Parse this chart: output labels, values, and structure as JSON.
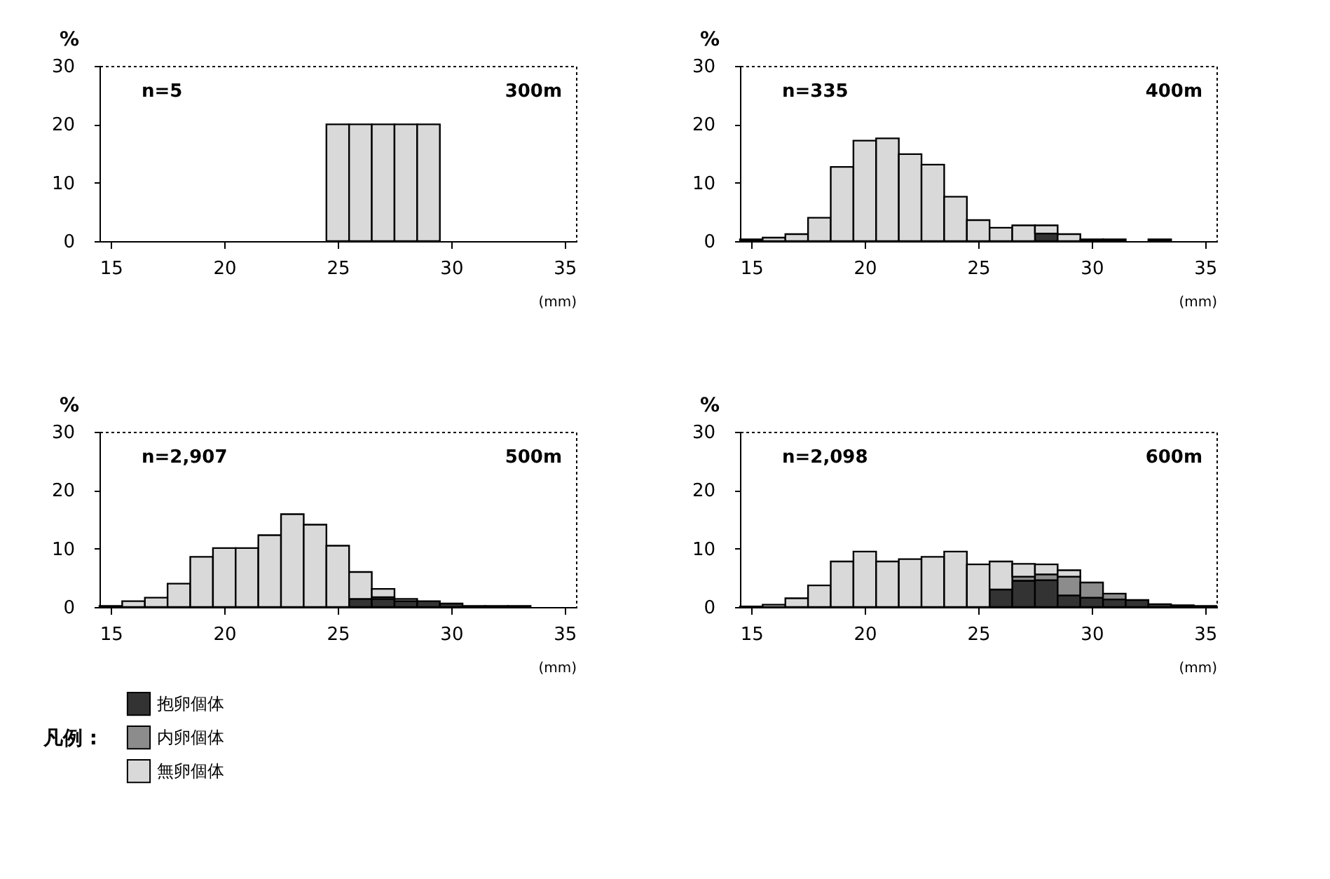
{
  "chart_data": [
    {
      "type": "bar",
      "ylabel": "%",
      "xlabel": "(mm)",
      "annotations": [
        "n=5",
        "300m"
      ],
      "x": [
        25,
        26,
        27,
        28,
        29
      ],
      "stacked": true,
      "xlim": [
        14.5,
        35.5
      ],
      "xticks": [
        15,
        20,
        25,
        30,
        35
      ],
      "ylim": [
        0,
        30
      ],
      "yticks": [
        0,
        10,
        20,
        30
      ],
      "series": [
        {
          "color": "#d9d9d9",
          "values": [
            20,
            20,
            20,
            20,
            20
          ]
        }
      ]
    },
    {
      "type": "bar",
      "ylabel": "%",
      "xlabel": "(mm)",
      "annotations": [
        "n=335",
        "400m"
      ],
      "x": [
        15,
        16,
        17,
        18,
        19,
        20,
        21,
        22,
        23,
        24,
        25,
        26,
        27,
        28,
        29,
        30,
        31,
        32,
        33
      ],
      "stacked": true,
      "xlim": [
        14.5,
        35.5
      ],
      "xticks": [
        15,
        20,
        25,
        30,
        35
      ],
      "ylim": [
        0,
        30
      ],
      "yticks": [
        0,
        10,
        20,
        30
      ],
      "series": [
        {
          "color": "#333333",
          "values": [
            null,
            null,
            null,
            null,
            null,
            null,
            null,
            null,
            null,
            null,
            null,
            null,
            null,
            1.3,
            null,
            null,
            null,
            null,
            null
          ]
        },
        {
          "color": "#d9d9d9",
          "values": [
            0.3,
            0.6,
            1.2,
            4.0,
            12.7,
            17.2,
            17.6,
            14.9,
            13.1,
            7.6,
            3.6,
            2.3,
            2.7,
            1.4,
            1.2,
            0.3,
            0.3,
            null,
            0.3
          ]
        }
      ]
    },
    {
      "type": "bar",
      "ylabel": "%",
      "xlabel": "(mm)",
      "annotations": [
        "n=2,907",
        "500m"
      ],
      "legend": "bottom left",
      "legend_title": "凡例 :",
      "x": [
        15,
        16,
        17,
        18,
        19,
        20,
        21,
        22,
        23,
        24,
        25,
        26,
        27,
        28,
        29,
        30,
        31,
        32,
        33
      ],
      "stacked": true,
      "xlim": [
        14.5,
        35.5
      ],
      "xticks": [
        15,
        20,
        25,
        30,
        35
      ],
      "ylim": [
        0,
        30
      ],
      "yticks": [
        0,
        10,
        20,
        30
      ],
      "series": [
        {
          "name": "抱卵個体",
          "color": "#333333",
          "values": [
            null,
            null,
            null,
            null,
            null,
            null,
            null,
            null,
            null,
            null,
            null,
            1.4,
            1.4,
            1.0,
            1.0,
            0.6,
            0.2,
            0.2,
            0.2
          ]
        },
        {
          "name": "内卵個体",
          "color": "#8c8c8c",
          "values": [
            null,
            null,
            null,
            null,
            null,
            null,
            null,
            null,
            null,
            null,
            null,
            null,
            0.3,
            0.4,
            null,
            null,
            null,
            null,
            null
          ]
        },
        {
          "name": "無卵個体",
          "color": "#d9d9d9",
          "values": [
            0.2,
            1.0,
            1.6,
            4.0,
            8.6,
            10.1,
            10.1,
            12.3,
            15.9,
            14.1,
            10.5,
            4.6,
            1.4,
            null,
            null,
            null,
            null,
            null,
            null
          ]
        }
      ]
    },
    {
      "type": "bar",
      "ylabel": "%",
      "xlabel": "(mm)",
      "annotations": [
        "n=2,098",
        "600m"
      ],
      "x": [
        15,
        16,
        17,
        18,
        19,
        20,
        21,
        22,
        23,
        24,
        25,
        26,
        27,
        28,
        29,
        30,
        31,
        32,
        33,
        34,
        35
      ],
      "stacked": true,
      "xlim": [
        14.5,
        35.5
      ],
      "xticks": [
        15,
        20,
        25,
        30,
        35
      ],
      "ylim": [
        0,
        30
      ],
      "yticks": [
        0,
        10,
        20,
        30
      ],
      "series": [
        {
          "color": "#333333",
          "values": [
            null,
            null,
            null,
            null,
            null,
            null,
            null,
            null,
            null,
            null,
            null,
            3.0,
            4.5,
            4.6,
            2.0,
            1.6,
            1.3,
            1.2,
            0.5,
            0.3,
            0.2
          ]
        },
        {
          "color": "#8c8c8c",
          "values": [
            null,
            null,
            null,
            null,
            null,
            null,
            null,
            null,
            null,
            null,
            null,
            null,
            0.7,
            1.0,
            3.2,
            2.6,
            1.0,
            null,
            null,
            null,
            null
          ]
        },
        {
          "color": "#d9d9d9",
          "values": [
            0.1,
            0.4,
            1.5,
            3.7,
            7.8,
            9.5,
            7.8,
            8.2,
            8.6,
            9.5,
            7.3,
            4.8,
            2.2,
            1.7,
            1.1,
            null,
            null,
            null,
            null,
            null,
            null
          ]
        }
      ]
    }
  ]
}
